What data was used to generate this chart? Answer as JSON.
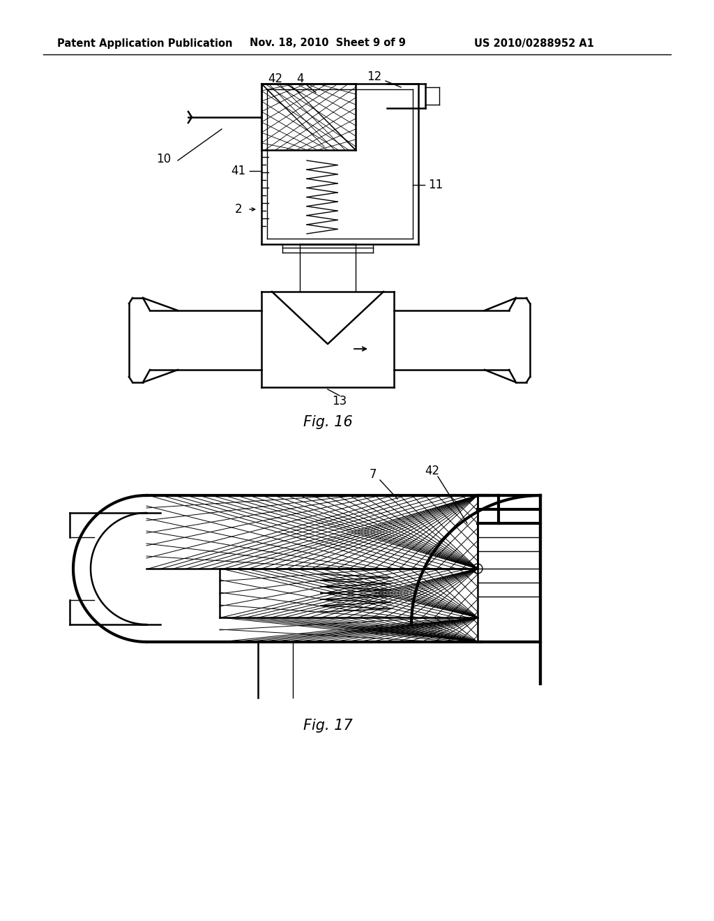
{
  "bg_color": "#ffffff",
  "line_color": "#000000",
  "header_text": "Patent Application Publication",
  "header_date": "Nov. 18, 2010  Sheet 9 of 9",
  "header_patent": "US 2010/0288952 A1",
  "fig16_label": "Fig. 16",
  "fig17_label": "Fig. 17"
}
